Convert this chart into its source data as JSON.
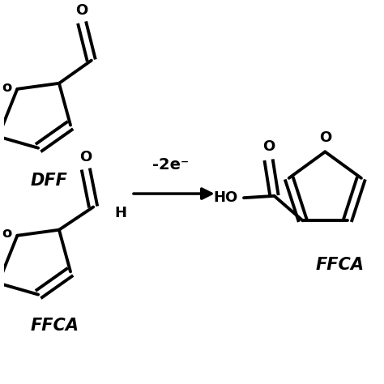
{
  "background": "#ffffff",
  "arrow_label": "-2e⁻",
  "label_DFF": "DFF",
  "label_FFCA_left": "FFCA",
  "label_FFCA_right": "FFCA",
  "lw": 2.8,
  "font_size_label": 15,
  "font_size_arrow": 14,
  "font_size_atom": 13,
  "font_size_ring_o": 12
}
